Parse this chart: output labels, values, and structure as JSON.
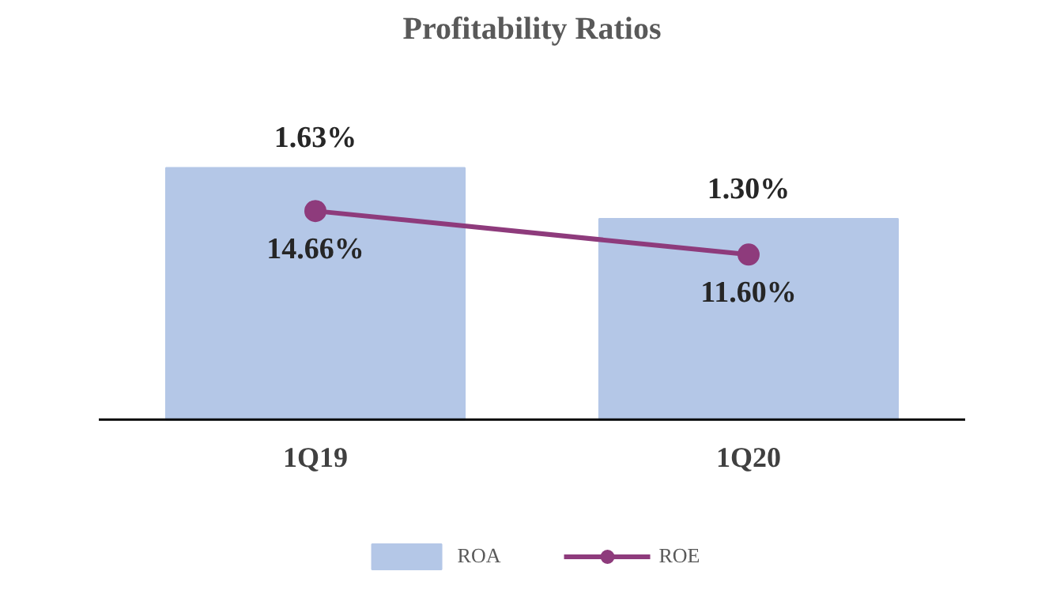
{
  "chart_data": {
    "type": "bar",
    "title": "Profitability Ratios",
    "categories": [
      "1Q19",
      "1Q20"
    ],
    "legend": "bottom",
    "series": [
      {
        "name": "ROA",
        "color": "#b4c7e7",
        "values": [
          1.63,
          1.3
        ],
        "value_labels": [
          "1.63%",
          "1.30%"
        ]
      },
      {
        "name": "ROE",
        "type": "line",
        "axis": "y2",
        "marker": "circle",
        "color": "#8e3b7c",
        "values": [
          14.66,
          11.6
        ],
        "value_labels": [
          "14.66%",
          "11.60%"
        ]
      }
    ]
  }
}
